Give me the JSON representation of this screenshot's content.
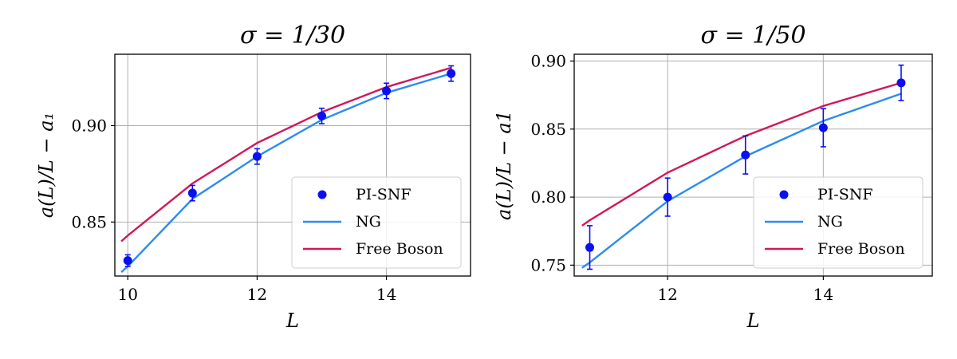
{
  "chart_data": [
    {
      "type": "line",
      "title": "σ = 1/30",
      "xlabel": "L",
      "ylabel": "a(L)/L − a₁",
      "xlim": [
        9.8,
        15.3
      ],
      "ylim": [
        0.822,
        0.937
      ],
      "xticks": [
        10,
        12,
        14
      ],
      "xtick_labels": [
        "10",
        "12",
        "14"
      ],
      "yticks": [
        0.85,
        0.9
      ],
      "ytick_labels": [
        "0.85",
        "0.90"
      ],
      "grid": true,
      "legend_position": "lower-right",
      "points": {
        "name": "PI-SNF",
        "x": [
          10,
          11,
          12,
          13,
          14,
          15
        ],
        "y": [
          0.83,
          0.865,
          0.884,
          0.905,
          0.918,
          0.927
        ],
        "err": [
          0.003,
          0.004,
          0.004,
          0.004,
          0.004,
          0.004
        ]
      },
      "series": [
        {
          "name": "NG",
          "x": [
            9.9,
            10,
            11,
            12,
            13,
            14,
            15
          ],
          "y": [
            0.824,
            0.827,
            0.862,
            0.884,
            0.903,
            0.917,
            0.927
          ]
        },
        {
          "name": "Free Boson",
          "x": [
            9.9,
            10,
            11,
            12,
            13,
            14,
            15
          ],
          "y": [
            0.84,
            0.843,
            0.87,
            0.891,
            0.907,
            0.92,
            0.93
          ]
        }
      ],
      "legend": [
        "PI-SNF",
        "NG",
        "Free Boson"
      ]
    },
    {
      "type": "line",
      "title": "σ = 1/50",
      "xlabel": "L",
      "ylabel": "a(L)/L − a1",
      "xlim": [
        10.8,
        15.4
      ],
      "ylim": [
        0.742,
        0.905
      ],
      "xticks": [
        12,
        14
      ],
      "xtick_labels": [
        "12",
        "14"
      ],
      "yticks": [
        0.75,
        0.8,
        0.85,
        0.9
      ],
      "ytick_labels": [
        "0.75",
        "0.80",
        "0.85",
        "0.90"
      ],
      "grid": true,
      "legend_position": "lower-right",
      "points": {
        "name": "PI-SNF",
        "x": [
          11,
          12,
          13,
          14,
          15
        ],
        "y": [
          0.763,
          0.8,
          0.831,
          0.851,
          0.884
        ],
        "err": [
          0.016,
          0.014,
          0.014,
          0.014,
          0.013
        ]
      },
      "series": [
        {
          "name": "NG",
          "x": [
            10.9,
            11,
            12,
            13,
            14,
            15
          ],
          "y": [
            0.748,
            0.752,
            0.797,
            0.83,
            0.856,
            0.876
          ]
        },
        {
          "name": "Free Boson",
          "x": [
            10.9,
            11,
            12,
            13,
            14,
            15
          ],
          "y": [
            0.779,
            0.783,
            0.818,
            0.845,
            0.867,
            0.884
          ]
        }
      ],
      "legend": [
        "PI-SNF",
        "NG",
        "Free Boson"
      ]
    }
  ],
  "colors": {
    "points": "#0a10f0",
    "ng": "#2a8cf0",
    "free_boson": "#d0185a"
  }
}
